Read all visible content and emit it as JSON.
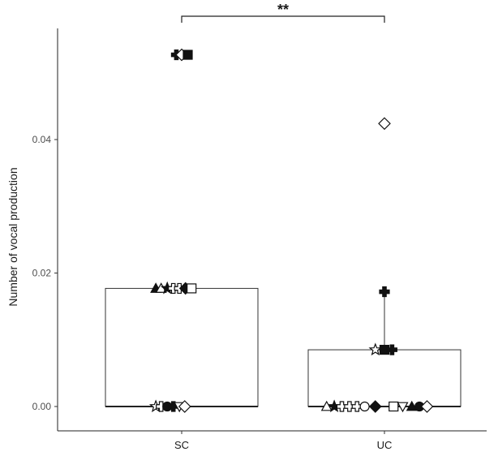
{
  "chart_data": {
    "type": "boxplot",
    "ylabel": "Number of vocal production",
    "xlabel": "",
    "categories": [
      "SC",
      "UC"
    ],
    "ylim": [
      -0.0035,
      0.056
    ],
    "yticks": [
      0.0,
      0.02,
      0.04
    ],
    "ytick_labels": [
      "0.00",
      "0.02",
      "0.04"
    ],
    "grid": false,
    "significance": {
      "from": "SC",
      "to": "UC",
      "label": "**"
    },
    "boxes": [
      {
        "category": "SC",
        "q1": 0.0,
        "median": 0.0,
        "q3": 0.0177,
        "whisker_low": 0.0,
        "whisker_high": 0.0177
      },
      {
        "category": "UC",
        "q1": 0.0,
        "median": 0.0,
        "q3": 0.0085,
        "whisker_low": 0.0,
        "whisker_high": 0.0172
      }
    ],
    "points": [
      {
        "category": "SC",
        "y": 0.0527,
        "offset": -0.07,
        "shape": "cross-filled"
      },
      {
        "category": "SC",
        "y": 0.0527,
        "offset": 0.0,
        "shape": "diamond-open"
      },
      {
        "category": "SC",
        "y": 0.0527,
        "offset": 0.08,
        "shape": "square-filled"
      },
      {
        "category": "SC",
        "y": 0.0177,
        "offset": -0.34,
        "shape": "triangle-filled"
      },
      {
        "category": "SC",
        "y": 0.0177,
        "offset": -0.27,
        "shape": "triangle-open"
      },
      {
        "category": "SC",
        "y": 0.0177,
        "offset": -0.19,
        "shape": "star-filled"
      },
      {
        "category": "SC",
        "y": 0.0177,
        "offset": -0.11,
        "shape": "cross-open"
      },
      {
        "category": "SC",
        "y": 0.0177,
        "offset": -0.03,
        "shape": "cross-open"
      },
      {
        "category": "SC",
        "y": 0.0177,
        "offset": 0.05,
        "shape": "diamond-filled"
      },
      {
        "category": "SC",
        "y": 0.0177,
        "offset": 0.13,
        "shape": "square-open"
      },
      {
        "category": "SC",
        "y": 0.0,
        "offset": -0.34,
        "shape": "star-open"
      },
      {
        "category": "SC",
        "y": 0.0,
        "offset": -0.27,
        "shape": "cross-open"
      },
      {
        "category": "SC",
        "y": 0.0,
        "offset": -0.19,
        "shape": "circle-filled"
      },
      {
        "category": "SC",
        "y": 0.0,
        "offset": -0.11,
        "shape": "cross-filled"
      },
      {
        "category": "SC",
        "y": 0.0,
        "offset": -0.03,
        "shape": "triangle-down-open"
      },
      {
        "category": "SC",
        "y": 0.0,
        "offset": 0.04,
        "shape": "diamond-open"
      },
      {
        "category": "UC",
        "y": 0.0424,
        "offset": 0.0,
        "shape": "diamond-open"
      },
      {
        "category": "UC",
        "y": 0.0172,
        "offset": 0.0,
        "shape": "cross-filled"
      },
      {
        "category": "UC",
        "y": 0.0085,
        "offset": -0.12,
        "shape": "star-open"
      },
      {
        "category": "UC",
        "y": 0.0085,
        "offset": 0.0,
        "shape": "square-filled"
      },
      {
        "category": "UC",
        "y": 0.0085,
        "offset": 0.1,
        "shape": "cross-filled"
      },
      {
        "category": "UC",
        "y": 0.0,
        "offset": -0.76,
        "shape": "triangle-open"
      },
      {
        "category": "UC",
        "y": 0.0,
        "offset": -0.66,
        "shape": "star-filled"
      },
      {
        "category": "UC",
        "y": 0.0,
        "offset": -0.56,
        "shape": "cross-open"
      },
      {
        "category": "UC",
        "y": 0.0,
        "offset": -0.46,
        "shape": "cross-open"
      },
      {
        "category": "UC",
        "y": 0.0,
        "offset": -0.36,
        "shape": "cross-open"
      },
      {
        "category": "UC",
        "y": 0.0,
        "offset": -0.26,
        "shape": "circle-open"
      },
      {
        "category": "UC",
        "y": 0.0,
        "offset": -0.12,
        "shape": "diamond-filled"
      },
      {
        "category": "UC",
        "y": 0.0,
        "offset": 0.12,
        "shape": "square-open"
      },
      {
        "category": "UC",
        "y": 0.0,
        "offset": 0.24,
        "shape": "triangle-down-open"
      },
      {
        "category": "UC",
        "y": 0.0,
        "offset": 0.36,
        "shape": "triangle-filled"
      },
      {
        "category": "UC",
        "y": 0.0,
        "offset": 0.46,
        "shape": "circle-filled"
      },
      {
        "category": "UC",
        "y": 0.0,
        "offset": 0.56,
        "shape": "diamond-open"
      }
    ]
  }
}
